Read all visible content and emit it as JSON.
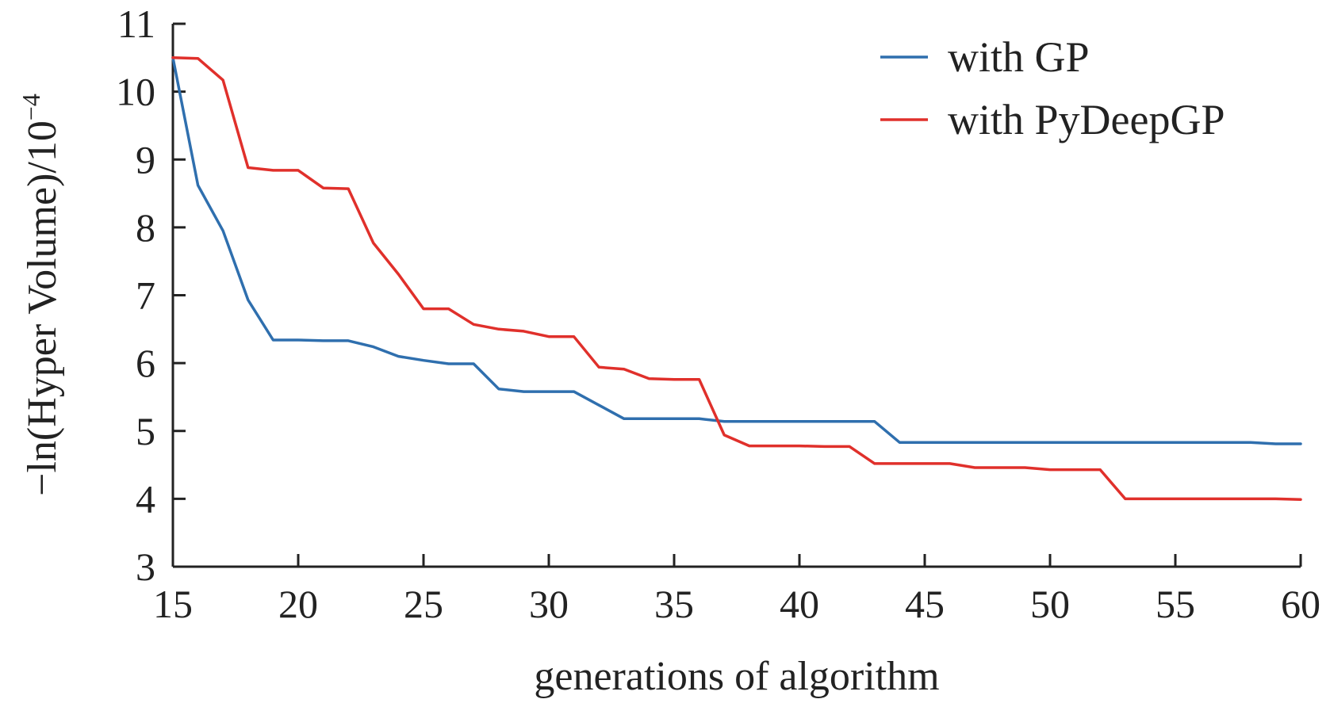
{
  "chart_data": {
    "type": "line",
    "xlabel": "generations of algorithm",
    "ylabel_main": "−ln(Hyper Volume)/10",
    "ylabel_exp": "−4",
    "xlim": [
      15,
      60
    ],
    "ylim": [
      3,
      11
    ],
    "xticks": [
      15,
      20,
      25,
      30,
      35,
      40,
      45,
      50,
      55,
      60
    ],
    "yticks": [
      3,
      4,
      5,
      6,
      7,
      8,
      9,
      10,
      11
    ],
    "grid": false,
    "legend_position": "top-right",
    "x": [
      15,
      16,
      17,
      18,
      19,
      20,
      21,
      22,
      23,
      24,
      25,
      26,
      27,
      28,
      29,
      30,
      31,
      32,
      33,
      34,
      35,
      36,
      37,
      38,
      39,
      40,
      41,
      42,
      43,
      44,
      45,
      46,
      47,
      48,
      49,
      50,
      51,
      52,
      53,
      54,
      55,
      56,
      57,
      58,
      59,
      60
    ],
    "series": [
      {
        "name": "with GP",
        "color": "#2f6fae",
        "values": [
          10.5,
          8.62,
          7.95,
          6.93,
          6.34,
          6.34,
          6.33,
          6.33,
          6.24,
          6.1,
          6.04,
          5.99,
          5.99,
          5.62,
          5.58,
          5.58,
          5.58,
          5.38,
          5.18,
          5.18,
          5.18,
          5.18,
          5.14,
          5.14,
          5.14,
          5.14,
          5.14,
          5.14,
          5.14,
          4.83,
          4.83,
          4.83,
          4.83,
          4.83,
          4.83,
          4.83,
          4.83,
          4.83,
          4.83,
          4.83,
          4.83,
          4.83,
          4.83,
          4.83,
          4.81,
          4.81
        ]
      },
      {
        "name": "with PyDeepGP",
        "color": "#e0302b",
        "values": [
          10.5,
          10.49,
          10.17,
          8.88,
          8.84,
          8.84,
          8.58,
          8.57,
          7.77,
          7.31,
          6.8,
          6.8,
          6.57,
          6.5,
          6.47,
          6.39,
          6.39,
          5.94,
          5.91,
          5.77,
          5.76,
          5.76,
          4.94,
          4.78,
          4.78,
          4.78,
          4.77,
          4.77,
          4.52,
          4.52,
          4.52,
          4.52,
          4.46,
          4.46,
          4.46,
          4.43,
          4.43,
          4.43,
          4.0,
          4.0,
          4.0,
          4.0,
          4.0,
          4.0,
          4.0,
          3.99
        ]
      }
    ]
  }
}
